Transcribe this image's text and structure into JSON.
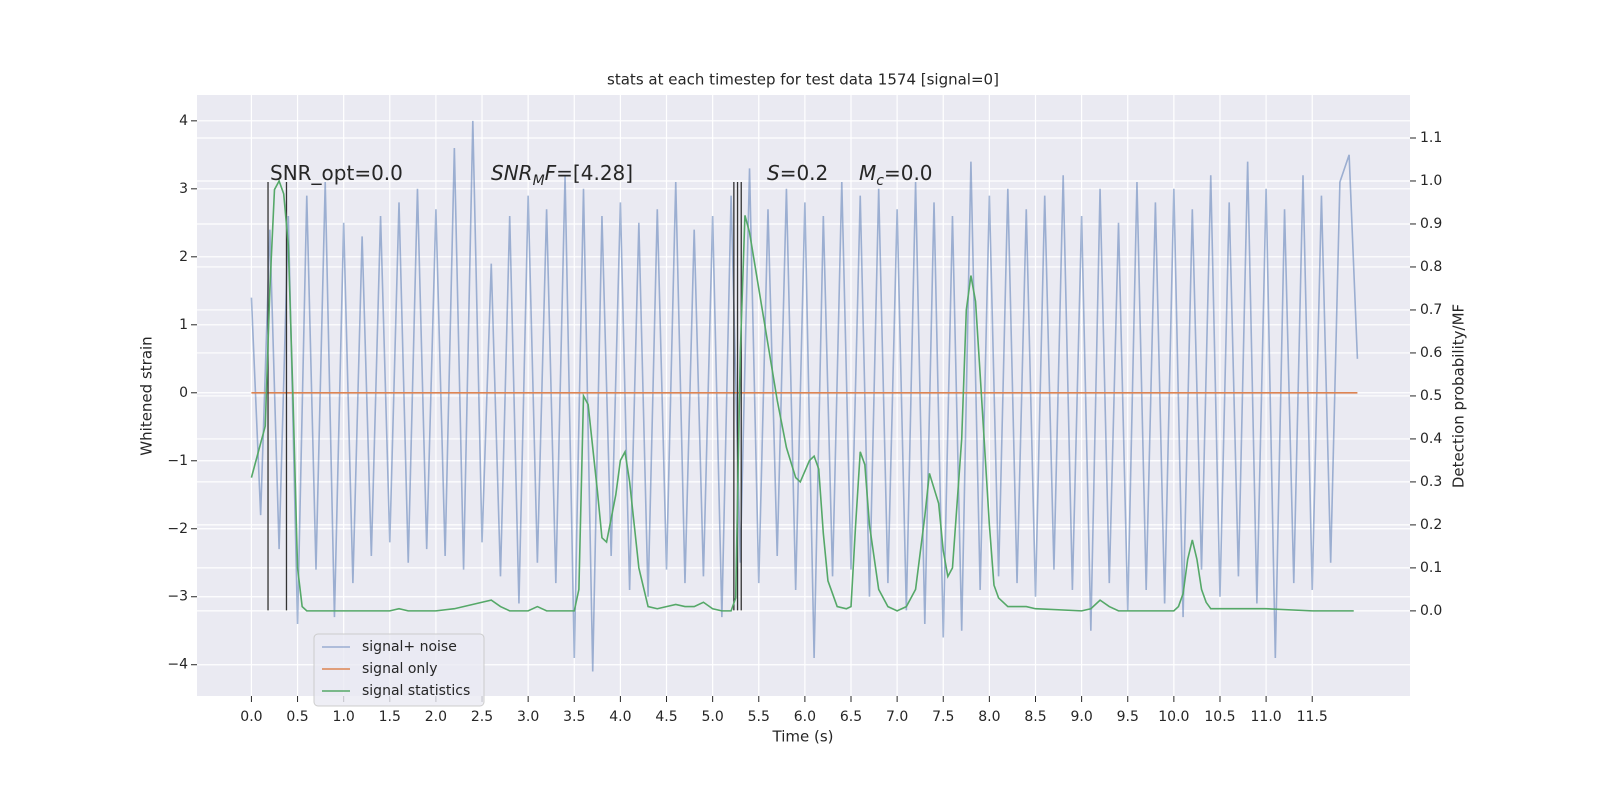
{
  "chart_data": {
    "type": "line",
    "title": "stats at each timestep for test data 1574 [signal=0]",
    "xlabel": "Time (s)",
    "ylabel": "Whitened strain",
    "y2label": "Detection probability/MF",
    "xlim": [
      -0.59,
      12.56
    ],
    "ylim": [
      -4.46,
      4.38
    ],
    "y2lim": [
      -0.198,
      1.2
    ],
    "xticks": [
      {
        "value": 0,
        "label": "0.0"
      },
      {
        "value": 0.5,
        "label": "0.5"
      },
      {
        "value": 1,
        "label": "1.0"
      },
      {
        "value": 1.5,
        "label": "1.5"
      },
      {
        "value": 2,
        "label": "2.0"
      },
      {
        "value": 2.5,
        "label": "2.5"
      },
      {
        "value": 3,
        "label": "3.0"
      },
      {
        "value": 3.5,
        "label": "3.5"
      },
      {
        "value": 4,
        "label": "4.0"
      },
      {
        "value": 4.5,
        "label": "4.5"
      },
      {
        "value": 5,
        "label": "5.0"
      },
      {
        "value": 5.5,
        "label": "5.5"
      },
      {
        "value": 6,
        "label": "6.0"
      },
      {
        "value": 6.5,
        "label": "6.5"
      },
      {
        "value": 7,
        "label": "7.0"
      },
      {
        "value": 7.5,
        "label": "7.5"
      },
      {
        "value": 8,
        "label": "8.0"
      },
      {
        "value": 8.5,
        "label": "8.5"
      },
      {
        "value": 9,
        "label": "9.0"
      },
      {
        "value": 9.5,
        "label": "9.5"
      },
      {
        "value": 10,
        "label": "10.0"
      },
      {
        "value": 10.5,
        "label": "10.5"
      },
      {
        "value": 11,
        "label": "11.0"
      },
      {
        "value": 11.5,
        "label": "11.5"
      }
    ],
    "yticks": [
      {
        "value": -4,
        "label": "−4"
      },
      {
        "value": -3,
        "label": "−3"
      },
      {
        "value": -2,
        "label": "−2"
      },
      {
        "value": -1,
        "label": "−1"
      },
      0,
      1,
      2,
      3,
      4
    ],
    "y2ticks": [
      {
        "value": 0,
        "label": "0.0"
      },
      {
        "value": 0.1,
        "label": "0.1"
      },
      {
        "value": 0.2,
        "label": "0.2"
      },
      {
        "value": 0.3,
        "label": "0.3"
      },
      {
        "value": 0.4,
        "label": "0.4"
      },
      {
        "value": 0.5,
        "label": "0.5"
      },
      {
        "value": 0.6,
        "label": "0.6"
      },
      {
        "value": 0.7,
        "label": "0.7"
      },
      {
        "value": 0.8,
        "label": "0.8"
      },
      {
        "value": 0.9,
        "label": "0.9"
      },
      {
        "value": 1,
        "label": "1.0"
      },
      {
        "value": 1.1,
        "label": "1.1"
      }
    ],
    "grid": true,
    "legend": "lower left",
    "series": [
      {
        "name": "signal+ noise",
        "color": "#4c72b0",
        "opacity": 0.5,
        "x": [
          0,
          0.1,
          0.2,
          0.3,
          0.4,
          0.5,
          0.6,
          0.7,
          0.8,
          0.9,
          1,
          1.1,
          1.2,
          1.3,
          1.4,
          1.5,
          1.6,
          1.7,
          1.8,
          1.9,
          2,
          2.1,
          2.2,
          2.3,
          2.4,
          2.5,
          2.6,
          2.7,
          2.8,
          2.9,
          3,
          3.1,
          3.2,
          3.3,
          3.4,
          3.5,
          3.6,
          3.7,
          3.8,
          3.9,
          4,
          4.1,
          4.2,
          4.3,
          4.4,
          4.5,
          4.6,
          4.7,
          4.8,
          4.9,
          5,
          5.1,
          5.2,
          5.3,
          5.4,
          5.5,
          5.6,
          5.7,
          5.8,
          5.9,
          6,
          6.1,
          6.2,
          6.3,
          6.4,
          6.5,
          6.6,
          6.7,
          6.8,
          6.9,
          7,
          7.1,
          7.2,
          7.3,
          7.4,
          7.5,
          7.6,
          7.7,
          7.8,
          7.9,
          8,
          8.1,
          8.2,
          8.3,
          8.4,
          8.5,
          8.6,
          8.7,
          8.8,
          8.9,
          9,
          9.1,
          9.2,
          9.3,
          9.4,
          9.5,
          9.6,
          9.7,
          9.8,
          9.9,
          10,
          10.1,
          10.2,
          10.3,
          10.4,
          10.5,
          10.6,
          10.7,
          10.8,
          10.9,
          11,
          11.1,
          11.2,
          11.3,
          11.4,
          11.5,
          11.6,
          11.7,
          11.8,
          11.9,
          11.99
        ],
        "values": [
          1.4,
          -1.8,
          2.4,
          -2.3,
          2.6,
          -3.4,
          2.9,
          -2.6,
          3.1,
          -3.3,
          2.5,
          -2.8,
          2.3,
          -2.4,
          2.6,
          -2.2,
          2.8,
          -2.5,
          3.0,
          -2.3,
          2.7,
          -2.4,
          3.6,
          -2.6,
          4.0,
          -2.2,
          1.9,
          -2.7,
          2.6,
          -3.1,
          2.9,
          -2.5,
          2.7,
          -2.8,
          3.2,
          -3.9,
          3.0,
          -4.1,
          2.6,
          -2.4,
          2.8,
          -2.9,
          2.5,
          -3.0,
          2.7,
          -2.6,
          3.1,
          -2.8,
          2.4,
          -2.7,
          2.6,
          -3.3,
          2.9,
          -2.5,
          3.3,
          -2.8,
          2.7,
          -2.4,
          3.0,
          -2.9,
          2.8,
          -3.9,
          2.6,
          -2.7,
          3.1,
          -2.6,
          2.9,
          -3.0,
          3.0,
          -2.8,
          2.7,
          -3.2,
          3.1,
          -3.4,
          2.8,
          -3.6,
          2.6,
          -3.5,
          3.4,
          -2.9,
          2.9,
          -2.7,
          3.0,
          -2.8,
          2.7,
          -3.0,
          2.9,
          -2.6,
          3.2,
          -2.9,
          2.6,
          -3.5,
          3.0,
          -2.8,
          2.5,
          -3.2,
          3.1,
          -2.9,
          2.8,
          -3.1,
          3.0,
          -3.3,
          2.7,
          -2.6,
          3.2,
          -3.0,
          2.8,
          -2.7,
          3.4,
          -3.1,
          3.0,
          -3.9,
          2.7,
          -2.8,
          3.2,
          -2.9,
          2.9,
          -2.5,
          3.1,
          3.5,
          0.5
        ]
      },
      {
        "name": "signal only",
        "color": "#dd8452",
        "opacity": 1,
        "x": [
          0,
          11.99
        ],
        "values": [
          0,
          0
        ]
      },
      {
        "name": "signal statistics",
        "color": "#55a868",
        "opacity": 1,
        "axis": "y2",
        "x": [
          0,
          0.15,
          0.2,
          0.25,
          0.3,
          0.35,
          0.4,
          0.45,
          0.5,
          0.55,
          0.6,
          1.0,
          1.5,
          1.6,
          1.7,
          2.0,
          2.2,
          2.5,
          2.6,
          2.7,
          2.8,
          3.0,
          3.1,
          3.2,
          3.5,
          3.55,
          3.6,
          3.65,
          3.75,
          3.8,
          3.85,
          3.95,
          4.0,
          4.05,
          4.1,
          4.2,
          4.3,
          4.4,
          4.6,
          4.7,
          4.8,
          4.9,
          5.0,
          5.1,
          5.2,
          5.25,
          5.3,
          5.35,
          5.4,
          5.5,
          5.6,
          5.7,
          5.8,
          5.9,
          5.95,
          6.05,
          6.1,
          6.15,
          6.2,
          6.25,
          6.35,
          6.45,
          6.5,
          6.55,
          6.6,
          6.65,
          6.7,
          6.8,
          6.9,
          7.0,
          7.1,
          7.2,
          7.3,
          7.35,
          7.45,
          7.5,
          7.55,
          7.6,
          7.7,
          7.75,
          7.8,
          7.85,
          7.9,
          8.0,
          8.05,
          8.1,
          8.2,
          8.4,
          8.5,
          9.0,
          9.1,
          9.2,
          9.3,
          9.4,
          10.0,
          10.05,
          10.1,
          10.15,
          10.2,
          10.25,
          10.3,
          10.35,
          10.4,
          11.0,
          11.5,
          11.95
        ],
        "values": [
          0.31,
          0.43,
          0.75,
          0.98,
          1.0,
          0.97,
          0.85,
          0.5,
          0.1,
          0.01,
          0.0,
          0.0,
          0.0,
          0.005,
          0.0,
          0.0,
          0.005,
          0.02,
          0.025,
          0.01,
          0.0,
          0.0,
          0.01,
          0.0,
          0.0,
          0.05,
          0.5,
          0.48,
          0.28,
          0.17,
          0.16,
          0.27,
          0.35,
          0.37,
          0.3,
          0.1,
          0.01,
          0.005,
          0.015,
          0.01,
          0.01,
          0.02,
          0.005,
          0.0,
          0.0,
          0.03,
          0.6,
          0.92,
          0.88,
          0.75,
          0.62,
          0.49,
          0.38,
          0.31,
          0.3,
          0.35,
          0.36,
          0.33,
          0.18,
          0.07,
          0.01,
          0.005,
          0.01,
          0.2,
          0.37,
          0.34,
          0.2,
          0.05,
          0.01,
          0.0,
          0.01,
          0.05,
          0.22,
          0.32,
          0.25,
          0.14,
          0.08,
          0.1,
          0.4,
          0.7,
          0.78,
          0.72,
          0.55,
          0.2,
          0.06,
          0.03,
          0.01,
          0.01,
          0.005,
          0.0,
          0.005,
          0.025,
          0.01,
          0.0,
          0.0,
          0.01,
          0.04,
          0.12,
          0.165,
          0.12,
          0.05,
          0.02,
          0.005,
          0.005,
          0.0,
          0.0
        ]
      }
    ],
    "vlines": [
      0.18,
      0.38,
      5.23,
      5.27,
      5.31
    ],
    "vline_span": [
      -3.2,
      3.1
    ],
    "vline_color": "#333333",
    "annotations": [
      [
        {
          "text": "SNR_opt=0.0"
        }
      ],
      [
        {
          "text": "SNR",
          "italic": true
        },
        {
          "text": "M",
          "italic": true,
          "sub": true
        },
        {
          "text": "F",
          "italic": true
        },
        {
          "text": "=[4.28]"
        }
      ],
      [
        {
          "text": "S",
          "italic": true
        },
        {
          "text": "=0.2"
        }
      ],
      [
        {
          "text": "M",
          "italic": true
        },
        {
          "text": "c",
          "italic": true,
          "sub": true
        },
        {
          "text": "=0.0"
        }
      ]
    ]
  }
}
